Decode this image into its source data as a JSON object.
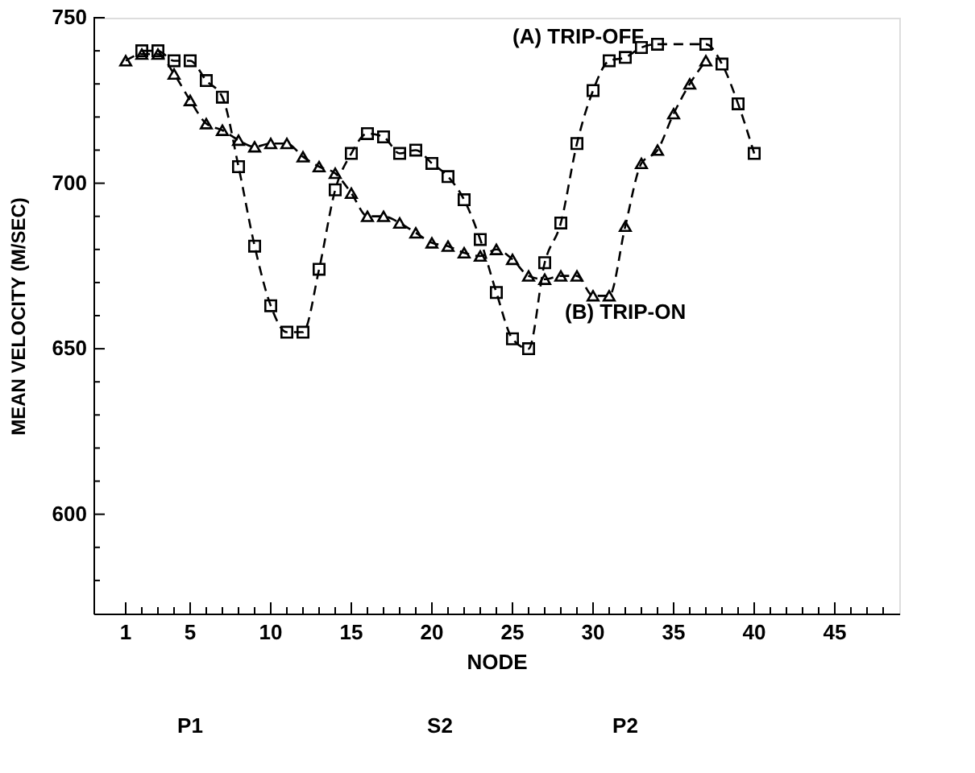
{
  "chart_data": {
    "type": "line",
    "xlabel": "NODE",
    "ylabel": "MEAN VELOCITY (M/SEC)",
    "xlim": [
      -1,
      49
    ],
    "ylim": [
      570,
      750
    ],
    "xticks": [
      {
        "value": 1,
        "label": "1"
      },
      {
        "value": 2,
        "label": null
      },
      {
        "value": 3,
        "label": null
      },
      {
        "value": 4,
        "label": null
      },
      {
        "value": 5,
        "label": "5"
      },
      {
        "value": 6,
        "label": null
      },
      {
        "value": 7,
        "label": null
      },
      {
        "value": 8,
        "label": null
      },
      {
        "value": 9,
        "label": null
      },
      {
        "value": 10,
        "label": "10"
      },
      {
        "value": 11,
        "label": null
      },
      {
        "value": 12,
        "label": null
      },
      {
        "value": 13,
        "label": null
      },
      {
        "value": 14,
        "label": null
      },
      {
        "value": 15,
        "label": "15"
      },
      {
        "value": 16,
        "label": null
      },
      {
        "value": 17,
        "label": null
      },
      {
        "value": 18,
        "label": null
      },
      {
        "value": 19,
        "label": null
      },
      {
        "value": 20,
        "label": "20"
      },
      {
        "value": 21,
        "label": null
      },
      {
        "value": 22,
        "label": null
      },
      {
        "value": 23,
        "label": null
      },
      {
        "value": 24,
        "label": null
      },
      {
        "value": 25,
        "label": "25"
      },
      {
        "value": 26,
        "label": null
      },
      {
        "value": 27,
        "label": null
      },
      {
        "value": 28,
        "label": null
      },
      {
        "value": 29,
        "label": null
      },
      {
        "value": 30,
        "label": "30"
      },
      {
        "value": 31,
        "label": null
      },
      {
        "value": 32,
        "label": null
      },
      {
        "value": 33,
        "label": null
      },
      {
        "value": 34,
        "label": null
      },
      {
        "value": 35,
        "label": "35"
      },
      {
        "value": 36,
        "label": null
      },
      {
        "value": 37,
        "label": null
      },
      {
        "value": 38,
        "label": null
      },
      {
        "value": 39,
        "label": null
      },
      {
        "value": 40,
        "label": "40"
      },
      {
        "value": 41,
        "label": null
      },
      {
        "value": 42,
        "label": null
      },
      {
        "value": 43,
        "label": null
      },
      {
        "value": 44,
        "label": null
      },
      {
        "value": 45,
        "label": "45"
      },
      {
        "value": 46,
        "label": null
      },
      {
        "value": 47,
        "label": null
      },
      {
        "value": 48,
        "label": null
      }
    ],
    "yticks": [
      {
        "value": 580,
        "label": null
      },
      {
        "value": 590,
        "label": null
      },
      600,
      {
        "value": 610,
        "label": null
      },
      {
        "value": 620,
        "label": null
      },
      {
        "value": 630,
        "label": null
      },
      {
        "value": 640,
        "label": null
      },
      650,
      {
        "value": 660,
        "label": null
      },
      {
        "value": 670,
        "label": null
      },
      {
        "value": 680,
        "label": null
      },
      {
        "value": 690,
        "label": null
      },
      700,
      {
        "value": 710,
        "label": null
      },
      {
        "value": 720,
        "label": null
      },
      {
        "value": 730,
        "label": null
      },
      {
        "value": 740,
        "label": null
      },
      750
    ],
    "grid": false,
    "legend": false,
    "line_style": "dashed",
    "series": [
      {
        "name": "(A) TRIP-OFF",
        "color": "#000000",
        "marker": "square",
        "x": [
          2,
          3,
          4,
          5,
          6,
          7,
          8,
          9,
          10,
          11,
          12,
          13,
          14,
          15,
          16,
          17,
          18,
          19,
          20,
          21,
          22,
          23,
          24,
          25,
          26,
          27,
          28,
          29,
          30,
          31,
          32,
          33,
          34,
          37,
          38,
          39,
          40
        ],
        "values": [
          740,
          740,
          737,
          737,
          731,
          726,
          705,
          681,
          663,
          655,
          655,
          674,
          698,
          709,
          715,
          714,
          709,
          710,
          706,
          702,
          695,
          683,
          667,
          653,
          650,
          676,
          688,
          712,
          728,
          737,
          738,
          741,
          742,
          742,
          736,
          724,
          709
        ]
      },
      {
        "name": "(B) TRIP-ON",
        "color": "#000000",
        "marker": "triangle",
        "x": [
          1,
          2,
          3,
          4,
          5,
          6,
          7,
          8,
          9,
          10,
          11,
          12,
          13,
          14,
          15,
          16,
          17,
          18,
          19,
          20,
          21,
          22,
          23,
          24,
          25,
          26,
          27,
          28,
          29,
          30,
          31,
          32,
          33,
          34,
          35,
          36,
          37
        ],
        "values": [
          737,
          739,
          739,
          733,
          725,
          718,
          716,
          713,
          711,
          712,
          712,
          708,
          705,
          703,
          697,
          690,
          690,
          688,
          685,
          682,
          681,
          679,
          678,
          680,
          677,
          672,
          671,
          672,
          672,
          666,
          666,
          687,
          706,
          710,
          721,
          730,
          737
        ]
      }
    ],
    "annotations": [
      "P1",
      "S2",
      "P2"
    ]
  }
}
